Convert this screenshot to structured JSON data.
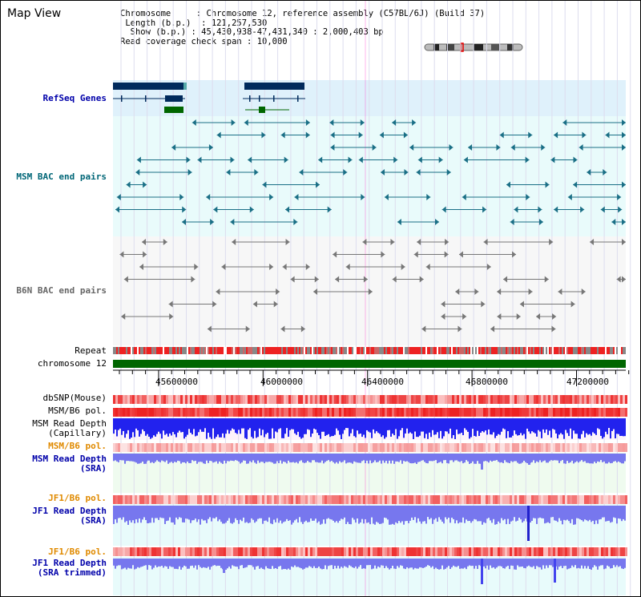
{
  "title": "Map View",
  "info": {
    "chromosome_label": "Chromosome",
    "chromosome_value": "Chromosome 12, reference assembly (C57BL/6J) (Build 37)",
    "length_label": "Length (b.p.)",
    "length_value": "121,257,530",
    "show_label": "Show (b.p.)",
    "show_value": "45,430,938-47,431,340 : 2,000,403 bp",
    "coverage_label": "Read coverage check span",
    "coverage_value": "10,000"
  },
  "tracks": {
    "refseq": "RefSeq Genes",
    "msm_bac": "MSM BAC end pairs",
    "b6n_bac": "B6N BAC end pairs",
    "repeat": "Repeat",
    "chrom": "chromosome 12",
    "dbsnp": "dbSNP(Mouse)",
    "msm_pol": "MSM/B6 pol.",
    "msm_depth_cap_1": "MSM Read Depth",
    "msm_depth_cap_2": "(Capillary)",
    "msm_pol2": "MSM/B6 pol.",
    "msm_depth_sra_1": "MSM Read Depth",
    "msm_depth_sra_2": "(SRA)",
    "jf1_pol": "JF1/B6 pol.",
    "jf1_depth_1": "JF1 Read Depth",
    "jf1_depth_2": "(SRA)",
    "jf1_pol2": "JF1/B6 pol.",
    "jf1_trim_1": "JF1 Read Depth",
    "jf1_trim_2": "(SRA trimmed)"
  },
  "axis": {
    "ticks": [
      "45600000",
      "46000000",
      "46400000",
      "46800000",
      "47200000"
    ]
  },
  "colors": {
    "refseq_bg": "#dff1fb",
    "msm_bg": "#e9fbfb",
    "b6n_bg": "#f7f7f7",
    "dark_blue": "#002a5c",
    "green": "#006600",
    "teal": "#1a6f86",
    "grey": "#777777",
    "red": "#ee2222",
    "depth_blue": "#2222ee",
    "depth_light": "#7777ee"
  }
}
